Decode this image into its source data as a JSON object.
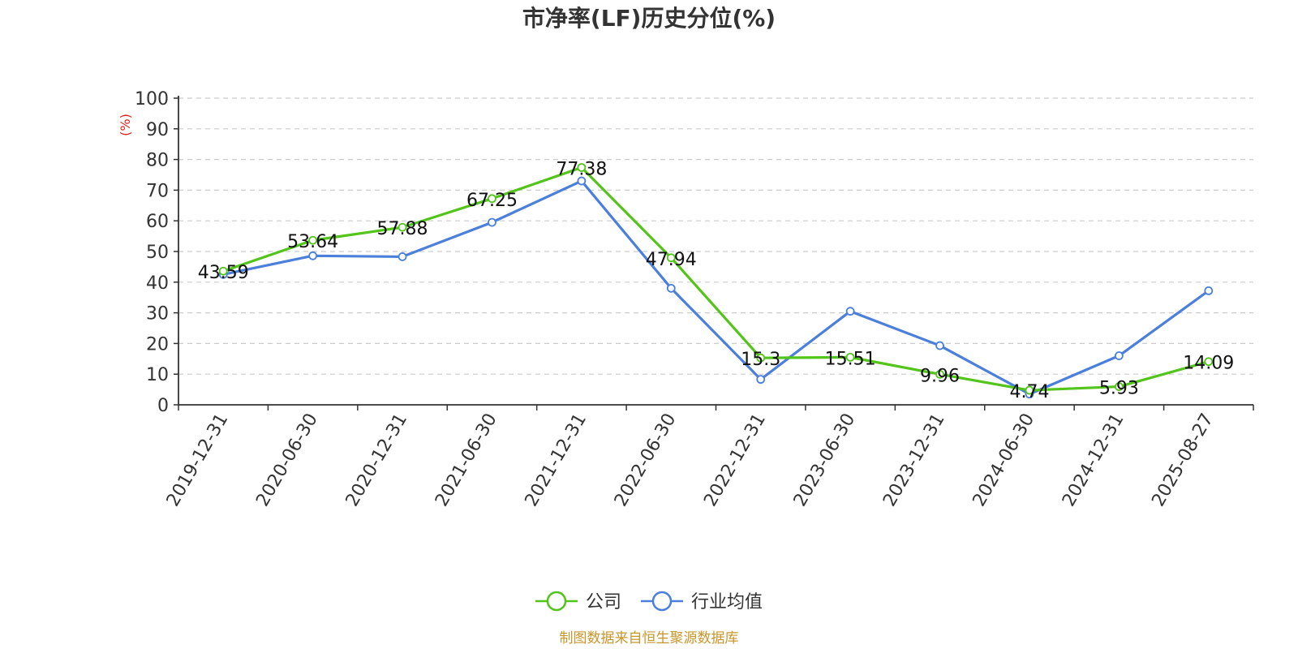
{
  "chart_data": {
    "type": "line",
    "title": "市净率(LF)历史分位(%)",
    "ylabel": "(%)",
    "ylim": [
      0,
      100
    ],
    "yticks": [
      0,
      10,
      20,
      30,
      40,
      50,
      60,
      70,
      80,
      90,
      100
    ],
    "categories": [
      "2019-12-31",
      "2020-06-30",
      "2020-12-31",
      "2021-06-30",
      "2021-12-31",
      "2022-06-30",
      "2022-12-31",
      "2023-06-30",
      "2023-12-31",
      "2024-06-30",
      "2024-12-31",
      "2025-08-27"
    ],
    "grid": true,
    "legend_position": "bottom-center",
    "series": [
      {
        "name": "公司",
        "color": "#52c41a",
        "values": [
          43.59,
          53.64,
          57.88,
          67.25,
          77.38,
          47.94,
          15.3,
          15.51,
          9.96,
          4.74,
          5.93,
          14.09
        ],
        "labels": [
          "43.59",
          "53.64",
          "57.88",
          "67.25",
          "77.38",
          "47.94",
          "15.3",
          "15.51",
          "9.96",
          "4.74",
          "5.93",
          "14.09"
        ]
      },
      {
        "name": "行业均值",
        "color": "#4a7fdc",
        "values": [
          42.5,
          48.6,
          48.3,
          59.5,
          73.0,
          38.0,
          8.3,
          30.5,
          19.3,
          3.5,
          16.0,
          37.2
        ]
      }
    ]
  },
  "footer": {
    "source": "制图数据来自恒生聚源数据库"
  }
}
